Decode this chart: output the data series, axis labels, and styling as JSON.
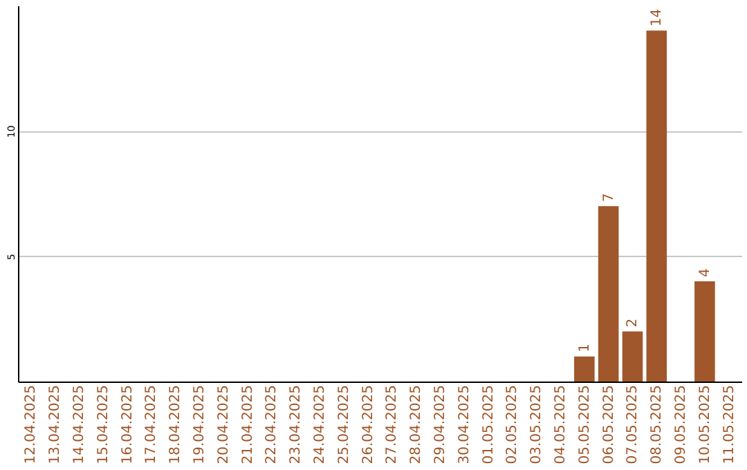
{
  "chart_data": {
    "type": "bar",
    "categories": [
      "12.04.2025",
      "13.04.2025",
      "14.04.2025",
      "15.04.2025",
      "16.04.2025",
      "17.04.2025",
      "18.04.2025",
      "19.04.2025",
      "20.04.2025",
      "21.04.2025",
      "22.04.2025",
      "23.04.2025",
      "24.04.2025",
      "25.04.2025",
      "26.04.2025",
      "27.04.2025",
      "28.04.2025",
      "29.04.2025",
      "30.04.2025",
      "01.05.2025",
      "02.05.2025",
      "03.05.2025",
      "04.05.2025",
      "05.05.2025",
      "06.05.2025",
      "07.05.2025",
      "08.05.2025",
      "09.05.2025",
      "10.05.2025",
      "11.05.2025"
    ],
    "values": [
      null,
      null,
      null,
      null,
      null,
      null,
      null,
      null,
      null,
      null,
      null,
      null,
      null,
      null,
      null,
      null,
      null,
      null,
      null,
      null,
      null,
      null,
      null,
      1,
      7,
      2,
      14,
      null,
      4,
      null
    ],
    "color": "#a0572b",
    "ylim": [
      0,
      15
    ],
    "yticks": [
      5,
      10
    ],
    "grid": "y",
    "data_labels": true
  }
}
